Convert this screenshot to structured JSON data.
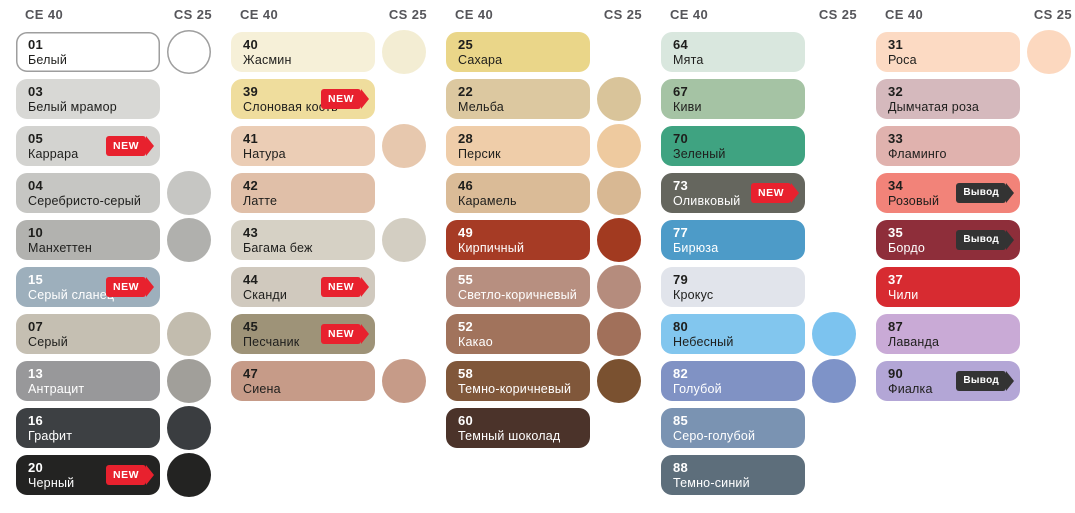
{
  "page_background": "#ffffff",
  "text_colors": {
    "dark": "#1e1e1c",
    "light": "#ffffff"
  },
  "badges": {
    "new": {
      "label": "NEW",
      "color": "#e8212e",
      "text_color": "#ffffff"
    },
    "vyvod": {
      "label": "Вывод",
      "color": "#333333",
      "text_color": "#ffffff"
    }
  },
  "columns": [
    {
      "ce_header": "CE 40",
      "cs_header": "CS 25",
      "rows": [
        {
          "code": "01",
          "name": "Белый",
          "color": "#ffffff",
          "swatch_border": "#9e9e9e",
          "text_color": "dark",
          "circle": {
            "color": "#ffffff",
            "border": "#9e9e9e"
          }
        },
        {
          "code": "03",
          "name": "Белый мрамор",
          "color": "#d8d8d5",
          "text_color": "dark"
        },
        {
          "code": "05",
          "name": "Каррара",
          "color": "#d3d3d0",
          "text_color": "dark",
          "badge": "new"
        },
        {
          "code": "04",
          "name": "Серебристо-серый",
          "color": "#c6c6c3",
          "text_color": "dark",
          "circle": {
            "color": "#c6c6c3"
          }
        },
        {
          "code": "10",
          "name": "Манхеттен",
          "color": "#b2b2af",
          "text_color": "dark",
          "circle": {
            "color": "#b0b0ad"
          }
        },
        {
          "code": "15",
          "name": "Серый сланец",
          "color": "#9dafbc",
          "text_color": "light",
          "badge": "new"
        },
        {
          "code": "07",
          "name": "Серый",
          "color": "#c5bfb2",
          "text_color": "dark",
          "circle": {
            "color": "#c2bcae"
          }
        },
        {
          "code": "13",
          "name": "Антрацит",
          "color": "#98989a",
          "text_color": "light",
          "circle": {
            "color": "#a19f9a"
          }
        },
        {
          "code": "16",
          "name": "Графит",
          "color": "#3d4043",
          "text_color": "light",
          "circle": {
            "color": "#3a3d40"
          }
        },
        {
          "code": "20",
          "name": "Черный",
          "color": "#232322",
          "text_color": "light",
          "badge": "new",
          "circle": {
            "color": "#232322"
          }
        }
      ]
    },
    {
      "ce_header": "CE 40",
      "cs_header": "CS 25",
      "rows": [
        {
          "code": "40",
          "name": "Жасмин",
          "color": "#f6f0d8",
          "text_color": "dark",
          "circle": {
            "color": "#f3edd3"
          }
        },
        {
          "code": "39",
          "name": "Слоновая кость",
          "color": "#efdd9d",
          "text_color": "dark",
          "badge": "new"
        },
        {
          "code": "41",
          "name": "Натура",
          "color": "#ebcdb5",
          "text_color": "dark",
          "circle": {
            "color": "#e7c8ae"
          }
        },
        {
          "code": "42",
          "name": "Латте",
          "color": "#e0bfa8",
          "text_color": "dark"
        },
        {
          "code": "43",
          "name": "Багама беж",
          "color": "#d6d1c5",
          "text_color": "dark",
          "circle": {
            "color": "#d3cec2"
          }
        },
        {
          "code": "44",
          "name": "Сканди",
          "color": "#d0c9be",
          "text_color": "dark",
          "badge": "new"
        },
        {
          "code": "45",
          "name": "Песчаник",
          "color": "#9e9378",
          "text_color": "dark",
          "badge": "new"
        },
        {
          "code": "47",
          "name": "Сиена",
          "color": "#c69b88",
          "text_color": "dark",
          "circle": {
            "color": "#c69b88"
          }
        }
      ]
    },
    {
      "ce_header": "CE 40",
      "cs_header": "CS 25",
      "rows": [
        {
          "code": "25",
          "name": "Сахара",
          "color": "#ead689",
          "text_color": "dark"
        },
        {
          "code": "22",
          "name": "Мельба",
          "color": "#dcc8a0",
          "text_color": "dark",
          "circle": {
            "color": "#d9c49a"
          }
        },
        {
          "code": "28",
          "name": "Персик",
          "color": "#efcda9",
          "text_color": "dark",
          "circle": {
            "color": "#eeca9f"
          }
        },
        {
          "code": "46",
          "name": "Карамель",
          "color": "#dabb97",
          "text_color": "dark",
          "circle": {
            "color": "#d8b893"
          }
        },
        {
          "code": "49",
          "name": "Кирпичный",
          "color": "#a63b25",
          "text_color": "light",
          "circle": {
            "color": "#a23a20"
          }
        },
        {
          "code": "55",
          "name": "Светло-коричневый",
          "color": "#b78f80",
          "text_color": "light",
          "circle": {
            "color": "#b58c7d"
          }
        },
        {
          "code": "52",
          "name": "Какао",
          "color": "#a1735c",
          "text_color": "light",
          "circle": {
            "color": "#a1705a"
          }
        },
        {
          "code": "58",
          "name": "Темно-коричневый",
          "color": "#80573a",
          "text_color": "light",
          "circle": {
            "color": "#7a5130"
          }
        },
        {
          "code": "60",
          "name": "Темный шоколад",
          "color": "#4b332a",
          "text_color": "light"
        }
      ]
    },
    {
      "ce_header": "CE 40",
      "cs_header": "CS 25",
      "rows": [
        {
          "code": "64",
          "name": "Мята",
          "color": "#d9e7de",
          "text_color": "dark"
        },
        {
          "code": "67",
          "name": "Киви",
          "color": "#a5c3a4",
          "text_color": "dark"
        },
        {
          "code": "70",
          "name": "Зеленый",
          "color": "#3fa381",
          "text_color": "dark"
        },
        {
          "code": "73",
          "name": "Оливковый",
          "color": "#65665e",
          "text_color": "light",
          "badge": "new"
        },
        {
          "code": "77",
          "name": "Бирюза",
          "color": "#4d9bc8",
          "text_color": "light"
        },
        {
          "code": "79",
          "name": "Крокус",
          "color": "#e1e4eb",
          "text_color": "dark"
        },
        {
          "code": "80",
          "name": "Небесный",
          "color": "#82c6ee",
          "text_color": "dark",
          "circle": {
            "color": "#7cc3ef"
          }
        },
        {
          "code": "82",
          "name": "Голубой",
          "color": "#8092c4",
          "text_color": "light",
          "circle": {
            "color": "#7e93c8"
          }
        },
        {
          "code": "85",
          "name": "Серо-голубой",
          "color": "#7a93b2",
          "text_color": "light"
        },
        {
          "code": "88",
          "name": "Темно-синий",
          "color": "#5d6e7b",
          "text_color": "light"
        }
      ]
    },
    {
      "ce_header": "CE 40",
      "cs_header": "CS 25",
      "rows": [
        {
          "code": "31",
          "name": "Роса",
          "color": "#fcdac3",
          "text_color": "dark",
          "circle": {
            "color": "#fcd8bf"
          }
        },
        {
          "code": "32",
          "name": "Дымчатая роза",
          "color": "#d5b9bd",
          "text_color": "dark"
        },
        {
          "code": "33",
          "name": "Фламинго",
          "color": "#e0b2ae",
          "text_color": "dark"
        },
        {
          "code": "34",
          "name": "Розовый",
          "color": "#f28379",
          "text_color": "dark",
          "badge": "vyvod"
        },
        {
          "code": "35",
          "name": "Бордо",
          "color": "#8e2e3a",
          "text_color": "light",
          "badge": "vyvod"
        },
        {
          "code": "37",
          "name": "Чили",
          "color": "#d72b31",
          "text_color": "light"
        },
        {
          "code": "87",
          "name": "Лаванда",
          "color": "#c9aad6",
          "text_color": "dark"
        },
        {
          "code": "90",
          "name": "Фиалка",
          "color": "#b3a6d6",
          "text_color": "dark",
          "badge": "vyvod"
        }
      ]
    }
  ]
}
